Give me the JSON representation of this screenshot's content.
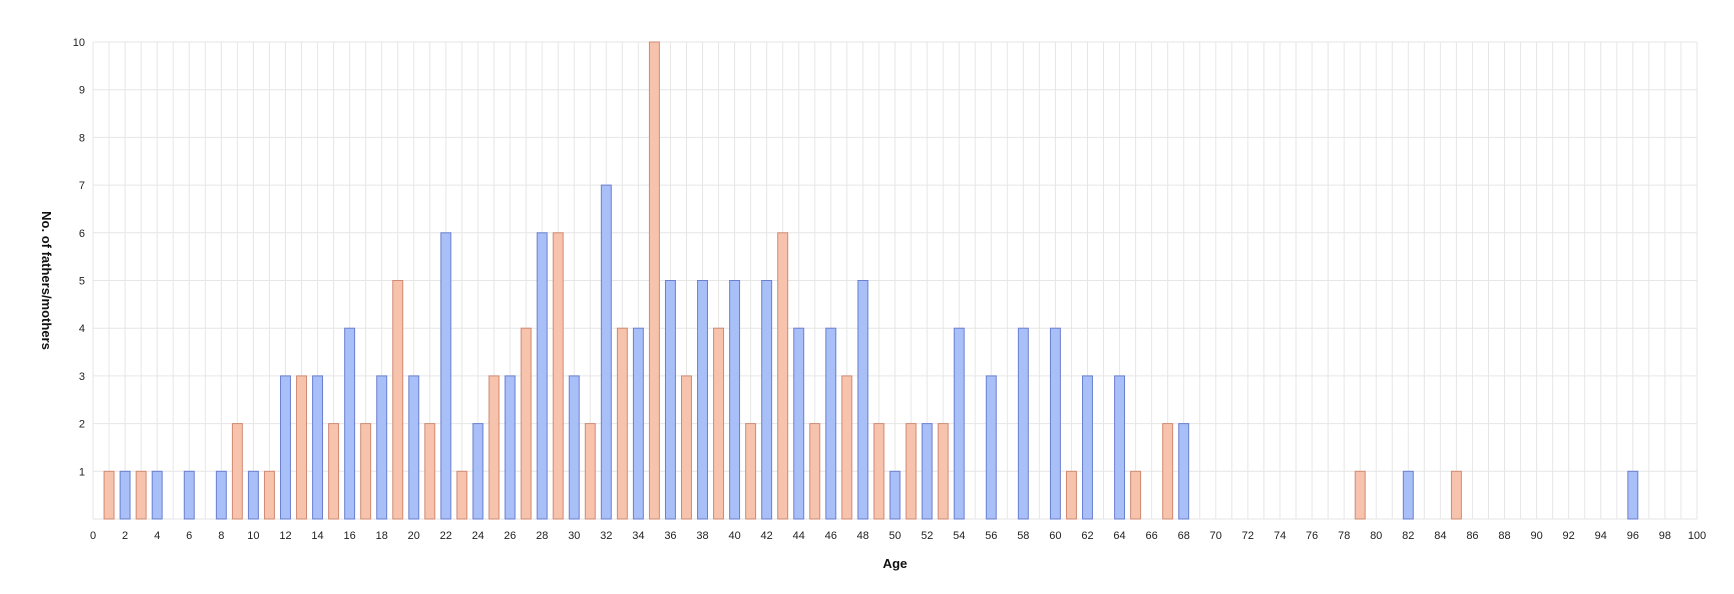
{
  "chart_data": {
    "type": "bar",
    "title": "",
    "xlabel": "Age",
    "ylabel": "No. of fathers/mothers",
    "xlim": [
      0,
      100
    ],
    "ylim": [
      0,
      10
    ],
    "x_ticks": [
      0,
      2,
      4,
      6,
      8,
      10,
      12,
      14,
      16,
      18,
      20,
      22,
      24,
      26,
      28,
      30,
      32,
      34,
      36,
      38,
      40,
      42,
      44,
      46,
      48,
      50,
      52,
      54,
      56,
      58,
      60,
      62,
      64,
      66,
      68,
      70,
      72,
      74,
      76,
      78,
      80,
      82,
      84,
      86,
      88,
      90,
      92,
      94,
      96,
      98,
      100
    ],
    "y_ticks": [
      1,
      2,
      3,
      4,
      5,
      6,
      7,
      8,
      9,
      10
    ],
    "grid": true,
    "colors": {
      "fathers_fill": "#a9bff7",
      "fathers_stroke": "#6a7fcf",
      "mothers_fill": "#f7c3ac",
      "mothers_stroke": "#cf8a72",
      "grid": "#e6e6e6"
    },
    "series": [
      {
        "name": "Fathers",
        "color": "fathers",
        "points": [
          {
            "x": 2,
            "y": 1
          },
          {
            "x": 4,
            "y": 1
          },
          {
            "x": 6,
            "y": 1
          },
          {
            "x": 8,
            "y": 1
          },
          {
            "x": 10,
            "y": 1
          },
          {
            "x": 12,
            "y": 3
          },
          {
            "x": 14,
            "y": 3
          },
          {
            "x": 16,
            "y": 4
          },
          {
            "x": 18,
            "y": 3
          },
          {
            "x": 20,
            "y": 3
          },
          {
            "x": 22,
            "y": 6
          },
          {
            "x": 24,
            "y": 2
          },
          {
            "x": 26,
            "y": 3
          },
          {
            "x": 28,
            "y": 6
          },
          {
            "x": 30,
            "y": 3
          },
          {
            "x": 32,
            "y": 7
          },
          {
            "x": 34,
            "y": 4
          },
          {
            "x": 36,
            "y": 5
          },
          {
            "x": 38,
            "y": 5
          },
          {
            "x": 40,
            "y": 5
          },
          {
            "x": 42,
            "y": 5
          },
          {
            "x": 44,
            "y": 4
          },
          {
            "x": 46,
            "y": 4
          },
          {
            "x": 48,
            "y": 5
          },
          {
            "x": 50,
            "y": 1
          },
          {
            "x": 52,
            "y": 2
          },
          {
            "x": 54,
            "y": 4
          },
          {
            "x": 56,
            "y": 3
          },
          {
            "x": 58,
            "y": 4
          },
          {
            "x": 60,
            "y": 4
          },
          {
            "x": 62,
            "y": 3
          },
          {
            "x": 64,
            "y": 3
          },
          {
            "x": 68,
            "y": 2
          },
          {
            "x": 82,
            "y": 1
          },
          {
            "x": 96,
            "y": 1
          }
        ]
      },
      {
        "name": "Mothers",
        "color": "mothers",
        "points": [
          {
            "x": 1,
            "y": 1
          },
          {
            "x": 3,
            "y": 1
          },
          {
            "x": 9,
            "y": 2
          },
          {
            "x": 11,
            "y": 1
          },
          {
            "x": 13,
            "y": 3
          },
          {
            "x": 15,
            "y": 2
          },
          {
            "x": 17,
            "y": 2
          },
          {
            "x": 19,
            "y": 5
          },
          {
            "x": 21,
            "y": 2
          },
          {
            "x": 23,
            "y": 1
          },
          {
            "x": 25,
            "y": 3
          },
          {
            "x": 27,
            "y": 4
          },
          {
            "x": 29,
            "y": 6
          },
          {
            "x": 31,
            "y": 2
          },
          {
            "x": 33,
            "y": 4
          },
          {
            "x": 35,
            "y": 10
          },
          {
            "x": 37,
            "y": 3
          },
          {
            "x": 39,
            "y": 4
          },
          {
            "x": 41,
            "y": 2
          },
          {
            "x": 43,
            "y": 6
          },
          {
            "x": 45,
            "y": 2
          },
          {
            "x": 47,
            "y": 3
          },
          {
            "x": 49,
            "y": 2
          },
          {
            "x": 51,
            "y": 2
          },
          {
            "x": 53,
            "y": 2
          },
          {
            "x": 61,
            "y": 1
          },
          {
            "x": 65,
            "y": 1
          },
          {
            "x": 67,
            "y": 2
          },
          {
            "x": 79,
            "y": 1
          },
          {
            "x": 85,
            "y": 1
          }
        ]
      }
    ]
  }
}
